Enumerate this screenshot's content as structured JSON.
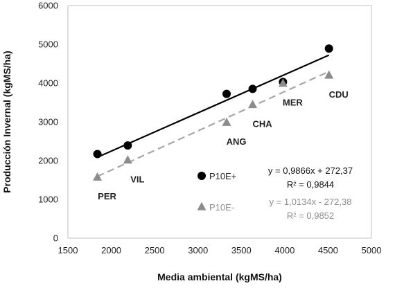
{
  "chart_data": {
    "type": "scatter",
    "xlabel": "Media ambiental (kgMS/ha)",
    "ylabel": "Producción Invernal (kgMS/ha)",
    "xlim": [
      1500,
      5000
    ],
    "ylim": [
      0,
      6000
    ],
    "xticks": [
      "1500",
      "2000",
      "2500",
      "3000",
      "3500",
      "4000",
      "4500",
      "5000"
    ],
    "yticks": [
      "0",
      "1000",
      "2000",
      "3000",
      "4000",
      "5000",
      "6000"
    ],
    "grid": false,
    "legend_position": "center-right",
    "series": [
      {
        "name": "P10E+",
        "marker": "circle",
        "color": "#000000",
        "points": [
          {
            "x": 1840,
            "y": 2170
          },
          {
            "x": 2190,
            "y": 2390
          },
          {
            "x": 3330,
            "y": 3720
          },
          {
            "x": 3630,
            "y": 3850
          },
          {
            "x": 3980,
            "y": 4030
          },
          {
            "x": 4510,
            "y": 4890
          }
        ],
        "trendline": {
          "style": "solid",
          "color": "#000000",
          "slope": 0.9866,
          "intercept": 272.37,
          "x_range": [
            1840,
            4510
          ]
        },
        "equation": "y = 0,9866x + 272,37",
        "r2": "R² = 0,9844"
      },
      {
        "name": "P10E-",
        "marker": "triangle",
        "color": "#8c8c8c",
        "points": [
          {
            "x": 1840,
            "y": 1570
          },
          {
            "x": 2190,
            "y": 2010
          },
          {
            "x": 3330,
            "y": 2980
          },
          {
            "x": 3630,
            "y": 3440
          },
          {
            "x": 3980,
            "y": 3990
          },
          {
            "x": 4510,
            "y": 4200
          }
        ],
        "trendline": {
          "style": "dashed",
          "color": "#a6a6a6",
          "slope": 1.0134,
          "intercept": -272.38,
          "x_range": [
            1840,
            4510
          ]
        },
        "equation": "y = 1,0134x - 272,38",
        "r2": "R² = 0,9852"
      }
    ],
    "annotations": [
      {
        "text": "PER",
        "x": 1840,
        "y": 1570
      },
      {
        "text": "VIL",
        "x": 2190,
        "y": 2010
      },
      {
        "text": "ANG",
        "x": 3330,
        "y": 2980
      },
      {
        "text": "CHA",
        "x": 3630,
        "y": 3440
      },
      {
        "text": "MER",
        "x": 3980,
        "y": 3990
      },
      {
        "text": "CDU",
        "x": 4510,
        "y": 4200
      }
    ]
  }
}
